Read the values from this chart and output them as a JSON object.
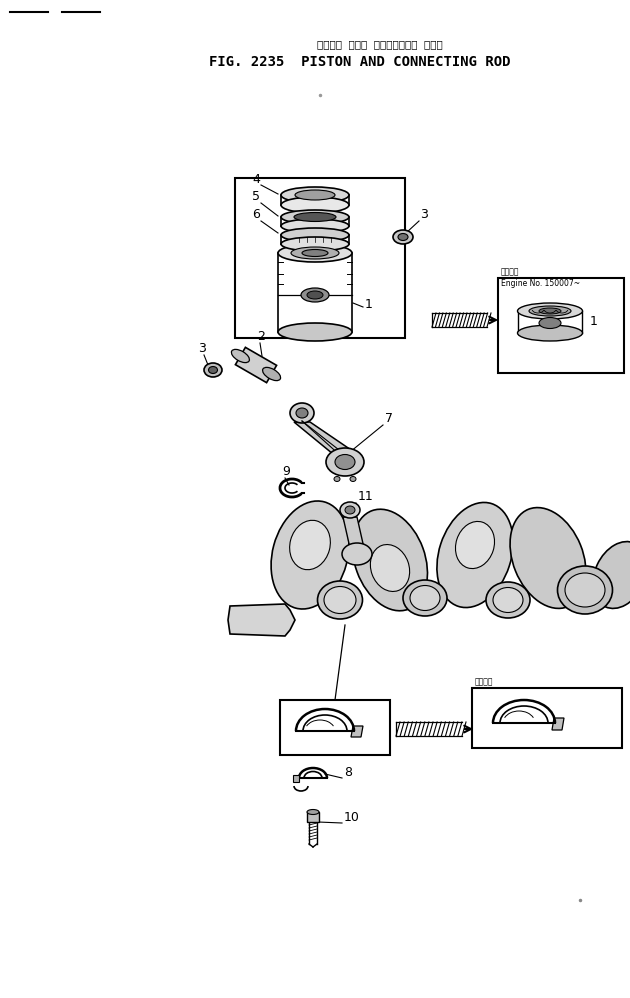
{
  "title_japanese": "ピストン  および  コネクティング  ロッド",
  "title_english": "FIG. 2235  PISTON AND CONNECTING ROD",
  "bg_color": "#ffffff",
  "line_color": "#000000",
  "text_color": "#000000",
  "inset_label_japanese": "適用号等",
  "inset_label_engine": "Engine No. 150007~",
  "fig_width": 6.3,
  "fig_height": 9.98,
  "dpi": 100
}
